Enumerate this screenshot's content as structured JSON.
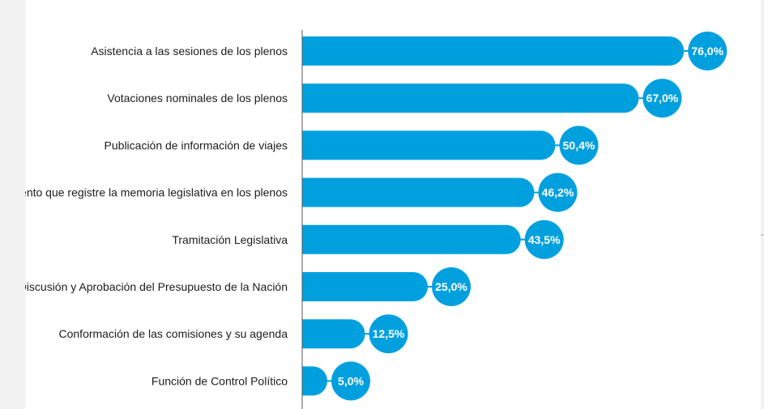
{
  "chart_data": {
    "type": "bar",
    "orientation": "horizontal",
    "categories": [
      "Asistencia a las sesiones de los plenos",
      "Votaciones nominales de los plenos",
      "Publicación de información de viajes",
      "umento que registre la memoria legislativa en los plenos",
      "Tramitación Legislativa",
      "Discusión y Aprobación del Presupuesto de la Nación",
      "Conformación de las comisiones y su agenda",
      "Función de Control Político"
    ],
    "values": [
      76.0,
      67.0,
      50.4,
      46.2,
      43.5,
      25.0,
      12.5,
      5.0
    ],
    "value_labels": [
      "76,0%",
      "67,0%",
      "50,4%",
      "46,2%",
      "43,5%",
      "25,0%",
      "12,5%",
      "5,0%"
    ],
    "xlim": [
      0,
      100
    ],
    "grid": false,
    "legend": "none",
    "colors": {
      "bar": "#00a0df",
      "axis": "#555555",
      "text": "#1d1d1d",
      "value_text": "#ffffff"
    }
  }
}
